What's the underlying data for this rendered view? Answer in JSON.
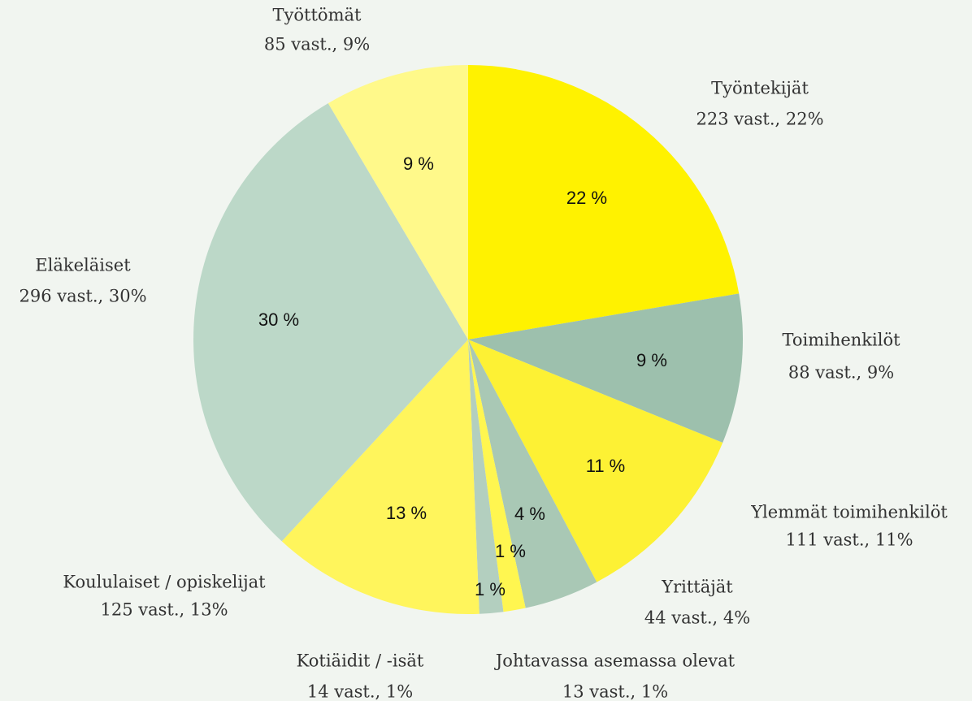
{
  "chart_data": {
    "type": "pie",
    "categories": [
      "Työntekijät",
      "Toimihenkilöt",
      "Ylemmät toimihenkilöt",
      "Yrittäjät",
      "Johtavassa asemassa olevat",
      "Kotiäidit / -isät",
      "Koululaiset / opiskelijat",
      "Eläkeläiset",
      "Työttömät"
    ],
    "values": [
      223,
      88,
      111,
      44,
      13,
      14,
      125,
      296,
      85
    ],
    "value_labels": [
      "223 vast., 22%",
      "88 vast., 9%",
      "111 vast., 11%",
      "44 vast., 4%",
      "13 vast., 1%",
      "14 vast., 1%",
      "125 vast., 13%",
      "296 vast., 30%",
      "85 vast., 9%"
    ],
    "percents": [
      22,
      9,
      11,
      4,
      1,
      1,
      13,
      30,
      9
    ],
    "percent_labels": [
      "22 %",
      "9 %",
      "11 %",
      "4 %",
      "1 %",
      "1 %",
      "13 %",
      "30 %",
      "9 %"
    ],
    "colors": [
      "#fff200",
      "#9dc0ad",
      "#fdf134",
      "#a9c8b5",
      "#fff650",
      "#b3cfbf",
      "#fff55c",
      "#bcd8c8",
      "#fff98a"
    ]
  }
}
